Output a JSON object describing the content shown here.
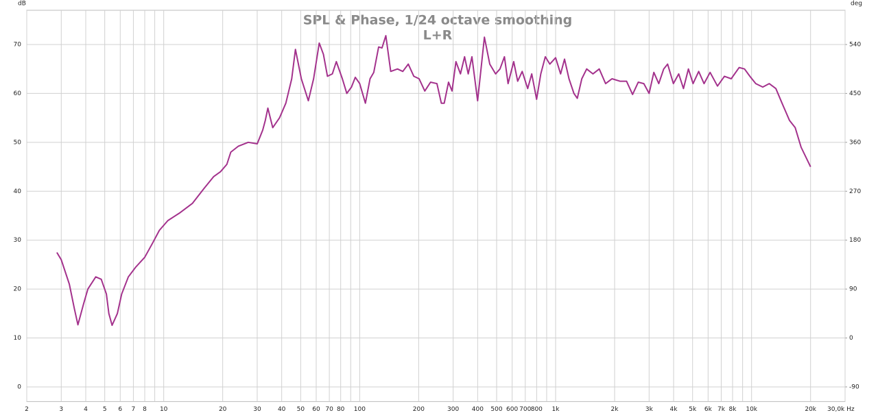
{
  "chart_data": {
    "type": "line",
    "title": "SPL & Phase, 1/24 octave smoothing",
    "subtitle": "L+R",
    "ylabel": "dB",
    "y2label": "deg",
    "xscale": "log",
    "color": "#a3318c",
    "grid": true,
    "xlim": [
      2,
      30000
    ],
    "ylim": [
      -3,
      77
    ],
    "y2lim": [
      -117,
      603
    ],
    "xticks": [
      2,
      3,
      4,
      5,
      6,
      7,
      8,
      10,
      20,
      30,
      40,
      50,
      60,
      70,
      80,
      100,
      200,
      300,
      400,
      500,
      600,
      700,
      800,
      {
        "value": 1000,
        "label": "1k"
      },
      {
        "value": 2000,
        "label": "2k"
      },
      {
        "value": 3000,
        "label": "3k"
      },
      {
        "value": 4000,
        "label": "4k"
      },
      {
        "value": 5000,
        "label": "5k"
      },
      {
        "value": 6000,
        "label": "6k"
      },
      {
        "value": 7000,
        "label": "7k"
      },
      {
        "value": 8000,
        "label": "8k"
      },
      {
        "value": 10000,
        "label": "10k"
      },
      {
        "value": 20000,
        "label": "20k"
      },
      {
        "value": 30000,
        "label": "30,0k Hz"
      }
    ],
    "xminorticks": [
      9,
      90,
      900,
      9000
    ],
    "yticks": [
      0,
      10,
      20,
      30,
      40,
      50,
      60,
      70
    ],
    "y2ticks": [
      -90,
      0,
      90,
      180,
      270,
      360,
      450,
      540
    ],
    "x": [
      2.85,
      3.0,
      3.3,
      3.5,
      3.65,
      3.9,
      4.1,
      4.5,
      4.8,
      5.1,
      5.25,
      5.45,
      5.8,
      6.1,
      6.6,
      7.2,
      8.0,
      8.8,
      9.5,
      10.5,
      12,
      14,
      16,
      18,
      19.5,
      21,
      22,
      24,
      27,
      30,
      32,
      33,
      34,
      36,
      39,
      42,
      45,
      47,
      50.4,
      54.7,
      58.2,
      62.2,
      65.3,
      68.5,
      72.5,
      76,
      81.6,
      86,
      90.8,
      95,
      100,
      107,
      113,
      118,
      125,
      130,
      136,
      144,
      156,
      166,
      177,
      189,
      201,
      215,
      230,
      248,
      261,
      270,
      284,
      296,
      310,
      327,
      343,
      358,
      374,
      400,
      433,
      461,
      494,
      520,
      548,
      572,
      611,
      640,
      675,
      720,
      755,
      800,
      840,
      886,
      934,
      1000,
      1060,
      1110,
      1170,
      1240,
      1290,
      1360,
      1440,
      1550,
      1670,
      1800,
      1940,
      2130,
      2300,
      2470,
      2640,
      2820,
      3000,
      3170,
      3360,
      3560,
      3730,
      3990,
      4250,
      4490,
      4760,
      5030,
      5370,
      5720,
      6140,
      6700,
      7270,
      7870,
      8640,
      9200,
      9800,
      10500,
      11400,
      12300,
      13300,
      14300,
      15600,
      16700,
      17900,
      20000
    ],
    "values": [
      27.5,
      26,
      21,
      16,
      12.7,
      17,
      20,
      22.5,
      22,
      19,
      15,
      12.6,
      15,
      19,
      22.5,
      24.5,
      26.5,
      29.5,
      32,
      34,
      35.5,
      37.5,
      40.5,
      43,
      44,
      45.5,
      48,
      49.2,
      50,
      49.7,
      52.5,
      54.5,
      57,
      53,
      55,
      58,
      63,
      69,
      63,
      58.5,
      63,
      70.3,
      68,
      63.5,
      64,
      66.5,
      63,
      60,
      61.3,
      63.3,
      62,
      58,
      63,
      64.3,
      69.5,
      69.3,
      71.8,
      64.5,
      65,
      64.5,
      66,
      63.5,
      63,
      60.5,
      62.3,
      62,
      58,
      58,
      62.3,
      60.5,
      66.5,
      64,
      67.5,
      64,
      67.5,
      58.5,
      71.5,
      66,
      64,
      65,
      67.5,
      62,
      66.5,
      62.5,
      64.5,
      61,
      64,
      58.8,
      64,
      67.5,
      66,
      67.3,
      64,
      67,
      63,
      60,
      59,
      63,
      65,
      64,
      65,
      62,
      63,
      62.5,
      62.5,
      59.8,
      62.3,
      62,
      60,
      64.3,
      62,
      65,
      66,
      62,
      64,
      61,
      65,
      62,
      64.5,
      62,
      64.3,
      61.5,
      63.5,
      63,
      65.3,
      65,
      63.5,
      62,
      61.3,
      62,
      61,
      58,
      54.5,
      53,
      49,
      45
    ]
  }
}
